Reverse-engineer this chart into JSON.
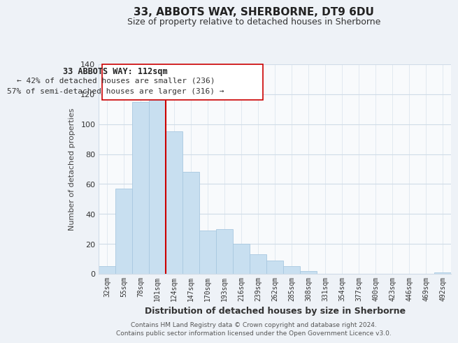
{
  "title": "33, ABBOTS WAY, SHERBORNE, DT9 6DU",
  "subtitle": "Size of property relative to detached houses in Sherborne",
  "xlabel": "Distribution of detached houses by size in Sherborne",
  "ylabel": "Number of detached properties",
  "bar_labels": [
    "32sqm",
    "55sqm",
    "78sqm",
    "101sqm",
    "124sqm",
    "147sqm",
    "170sqm",
    "193sqm",
    "216sqm",
    "239sqm",
    "262sqm",
    "285sqm",
    "308sqm",
    "331sqm",
    "354sqm",
    "377sqm",
    "400sqm",
    "423sqm",
    "446sqm",
    "469sqm",
    "492sqm"
  ],
  "bar_values": [
    5,
    57,
    115,
    116,
    95,
    68,
    29,
    30,
    20,
    13,
    9,
    5,
    2,
    0,
    0,
    0,
    0,
    0,
    0,
    0,
    1
  ],
  "bar_color": "#c8dff0",
  "bar_edge_color": "#a8c8e0",
  "vline_x": 3.5,
  "vline_color": "#cc0000",
  "annotation_title": "33 ABBOTS WAY: 112sqm",
  "annotation_line1": "← 42% of detached houses are smaller (236)",
  "annotation_line2": "57% of semi-detached houses are larger (316) →",
  "annotation_box_color": "#ffffff",
  "annotation_box_edge": "#cc0000",
  "ylim": [
    0,
    140
  ],
  "yticks": [
    0,
    20,
    40,
    60,
    80,
    100,
    120,
    140
  ],
  "footer1": "Contains HM Land Registry data © Crown copyright and database right 2024.",
  "footer2": "Contains public sector information licensed under the Open Government Licence v3.0.",
  "bg_color": "#eef2f7",
  "plot_bg_color": "#f8fafc",
  "grid_color": "#d0dce8"
}
